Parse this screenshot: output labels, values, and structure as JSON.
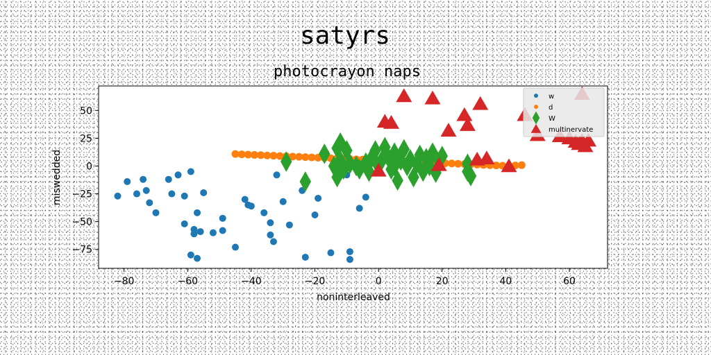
{
  "chart_data": {
    "type": "scatter",
    "title": "satyrs",
    "subtitle": "photocrayon naps",
    "xlabel": "noninterleaved",
    "ylabel": "miswedded",
    "xlim": [
      -88,
      72
    ],
    "ylim": [
      -92,
      72
    ],
    "xticks": [
      -80,
      -60,
      -40,
      -20,
      0,
      20,
      40,
      60
    ],
    "yticks": [
      -75,
      -50,
      -25,
      0,
      25,
      50
    ],
    "grid": false,
    "legend_position": "top-right",
    "series": [
      {
        "name": "w",
        "color": "#1f77b4",
        "marker": "circle",
        "points": [
          [
            -82,
            -27
          ],
          [
            -79,
            -14
          ],
          [
            -76,
            -25
          ],
          [
            -74,
            -12
          ],
          [
            -73,
            -22
          ],
          [
            -72,
            -33
          ],
          [
            -70,
            -42
          ],
          [
            -66,
            -12
          ],
          [
            -65,
            -25
          ],
          [
            -63,
            -8
          ],
          [
            -61,
            -27
          ],
          [
            -61,
            -52
          ],
          [
            -59,
            -5
          ],
          [
            -58,
            -57
          ],
          [
            -58,
            -61
          ],
          [
            -57,
            -42
          ],
          [
            -56,
            -59
          ],
          [
            -55,
            -24
          ],
          [
            -59,
            -80
          ],
          [
            -57,
            -83
          ],
          [
            -52,
            -60
          ],
          [
            -49,
            -47
          ],
          [
            -49,
            -58
          ],
          [
            -45,
            -73
          ],
          [
            -42,
            -30
          ],
          [
            -41,
            -35
          ],
          [
            -40,
            -36
          ],
          [
            -36,
            -42
          ],
          [
            -34,
            -51
          ],
          [
            -34,
            -62
          ],
          [
            -33,
            -68
          ],
          [
            -32,
            -8
          ],
          [
            -30,
            -32
          ],
          [
            -28,
            -53
          ],
          [
            -24,
            -22
          ],
          [
            -23,
            -82
          ],
          [
            -20,
            -44
          ],
          [
            -19,
            -29
          ],
          [
            -15,
            -78
          ],
          [
            -10,
            -8
          ],
          [
            -9,
            -77
          ],
          [
            -9,
            -84
          ],
          [
            -6,
            -38
          ],
          [
            -4,
            -28
          ]
        ]
      },
      {
        "name": "d",
        "color": "#ff7f0e",
        "marker": "circle",
        "points": [
          [
            -45,
            10.8
          ],
          [
            -43,
            10.5
          ],
          [
            -41,
            10.3
          ],
          [
            -39,
            10.0
          ],
          [
            -37,
            9.8
          ],
          [
            -35,
            9.5
          ],
          [
            -33,
            9.3
          ],
          [
            -31,
            9.0
          ],
          [
            -29,
            8.8
          ],
          [
            -27,
            8.5
          ],
          [
            -25,
            8.3
          ],
          [
            -23,
            8.0
          ],
          [
            -21,
            7.8
          ],
          [
            -19,
            7.5
          ],
          [
            -17,
            7.3
          ],
          [
            -15,
            7.0
          ],
          [
            -13,
            6.8
          ],
          [
            -11,
            6.5
          ],
          [
            -9,
            6.3
          ],
          [
            -7,
            6.0
          ],
          [
            -5,
            5.8
          ],
          [
            -3,
            5.5
          ],
          [
            -1,
            5.3
          ],
          [
            1,
            5.0
          ],
          [
            3,
            4.8
          ],
          [
            5,
            4.5
          ],
          [
            7,
            4.3
          ],
          [
            9,
            4.0
          ],
          [
            11,
            3.8
          ],
          [
            13,
            3.5
          ],
          [
            15,
            3.3
          ],
          [
            17,
            3.0
          ],
          [
            19,
            2.8
          ],
          [
            21,
            2.5
          ],
          [
            23,
            2.3
          ],
          [
            25,
            2.0
          ],
          [
            27,
            1.8
          ],
          [
            29,
            1.5
          ],
          [
            31,
            1.3
          ],
          [
            33,
            1.0
          ],
          [
            35,
            0.8
          ],
          [
            37,
            0.5
          ],
          [
            39,
            0.3
          ],
          [
            41,
            0.0
          ],
          [
            43,
            0.5
          ],
          [
            45,
            0.8
          ]
        ]
      },
      {
        "name": "W",
        "color": "#2ca02c",
        "marker": "diamond",
        "points": [
          [
            -29,
            4
          ],
          [
            -23,
            -14
          ],
          [
            -17,
            11
          ],
          [
            -14,
            0
          ],
          [
            -13,
            16
          ],
          [
            -13,
            -10
          ],
          [
            -12,
            21
          ],
          [
            -12,
            5
          ],
          [
            -11,
            -3
          ],
          [
            -10,
            14
          ],
          [
            -9,
            2
          ],
          [
            -7,
            0
          ],
          [
            -6,
            -3
          ],
          [
            -4,
            3
          ],
          [
            -3,
            -5
          ],
          [
            -2,
            8
          ],
          [
            -1,
            14
          ],
          [
            0,
            0
          ],
          [
            1,
            5
          ],
          [
            2,
            17
          ],
          [
            3,
            8
          ],
          [
            4,
            -3
          ],
          [
            5,
            12
          ],
          [
            5,
            0
          ],
          [
            6,
            -13
          ],
          [
            7,
            5
          ],
          [
            8,
            15
          ],
          [
            9,
            0
          ],
          [
            10,
            6
          ],
          [
            11,
            -10
          ],
          [
            12,
            2
          ],
          [
            13,
            10
          ],
          [
            14,
            -5
          ],
          [
            15,
            7
          ],
          [
            16,
            0
          ],
          [
            17,
            12
          ],
          [
            18,
            -6
          ],
          [
            19,
            4
          ],
          [
            20,
            9
          ],
          [
            28,
            -5
          ],
          [
            28,
            2
          ],
          [
            29,
            -9
          ]
        ]
      },
      {
        "name": "multinervate",
        "color": "#d62728",
        "marker": "triangle",
        "points": [
          [
            0,
            -4
          ],
          [
            2,
            40
          ],
          [
            4,
            39
          ],
          [
            8,
            63
          ],
          [
            17,
            61
          ],
          [
            19,
            1
          ],
          [
            22,
            32
          ],
          [
            27,
            46
          ],
          [
            28,
            37
          ],
          [
            31,
            6
          ],
          [
            32,
            56
          ],
          [
            34,
            7
          ],
          [
            41,
            0
          ],
          [
            46,
            46
          ],
          [
            50,
            28
          ],
          [
            57,
            27
          ],
          [
            60,
            25
          ],
          [
            62,
            22
          ],
          [
            63,
            20
          ],
          [
            64,
            23
          ],
          [
            64,
            65
          ],
          [
            65,
            18
          ],
          [
            66,
            23
          ]
        ]
      }
    ]
  }
}
